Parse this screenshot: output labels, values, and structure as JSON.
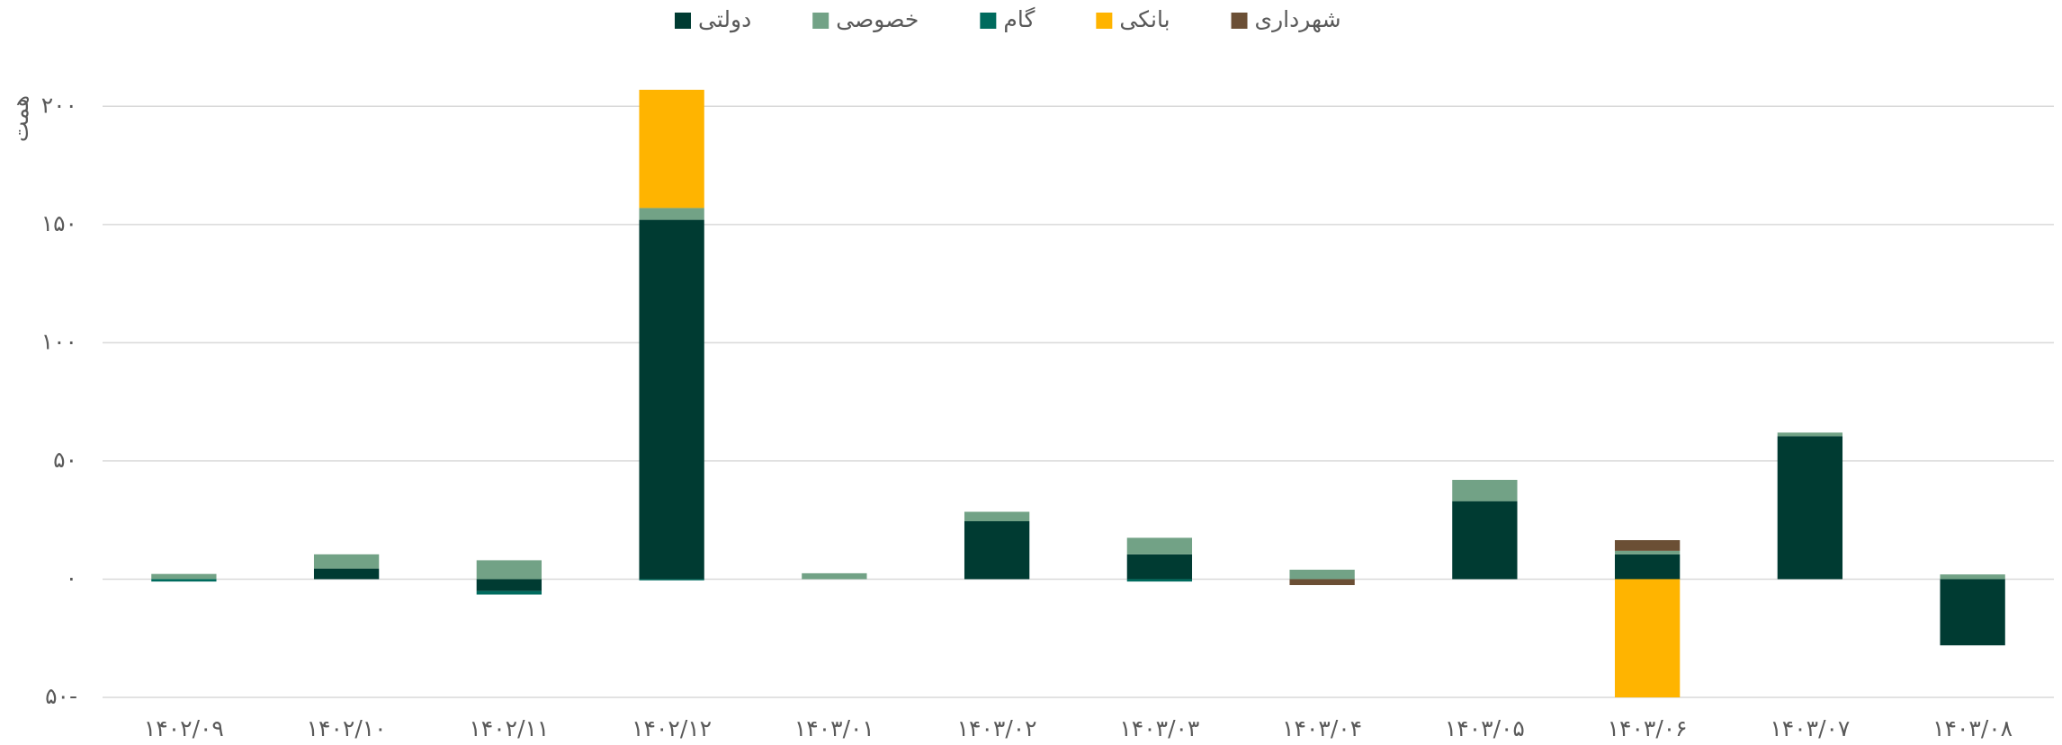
{
  "chart_data": {
    "type": "bar",
    "stacked": true,
    "y_label": "همت",
    "categories": [
      "۱۴۰۲/۰۹",
      "۱۴۰۲/۱۰",
      "۱۴۰۲/۱۱",
      "۱۴۰۲/۱۲",
      "۱۴۰۳/۰۱",
      "۱۴۰۳/۰۲",
      "۱۴۰۳/۰۳",
      "۱۴۰۳/۰۴",
      "۱۴۰۳/۰۵",
      "۱۴۰۳/۰۶",
      "۱۴۰۳/۰۷",
      "۱۴۰۳/۰۸"
    ],
    "series": [
      {
        "name": "دولتی",
        "color": "#003b32",
        "values": [
          0,
          4.5,
          -5,
          152,
          0,
          24.5,
          10.5,
          0,
          33,
          10.5,
          60.5,
          -28
        ]
      },
      {
        "name": "خصوصی",
        "color": "#72a286",
        "values": [
          2.2,
          6,
          8,
          5,
          2.5,
          4,
          7,
          4,
          9,
          1.5,
          1.5,
          2
        ]
      },
      {
        "name": "گام",
        "color": "#006b5e",
        "values": [
          -1,
          0,
          -1.5,
          -0.5,
          0,
          0,
          -1,
          0,
          0,
          0,
          0,
          0
        ]
      },
      {
        "name": "بانکی",
        "color": "#ffb400",
        "values": [
          0,
          0,
          0,
          50,
          0,
          0,
          0,
          0,
          0,
          -50,
          0,
          0
        ]
      },
      {
        "name": "شهرداری",
        "color": "#6b4f35",
        "values": [
          0,
          0,
          0,
          0,
          0,
          0,
          0,
          -2.5,
          0,
          4.5,
          0,
          0
        ]
      }
    ],
    "ylim": [
      -50,
      210
    ],
    "yticks": [
      {
        "value": -50,
        "label": "۵۰-"
      },
      {
        "value": 0,
        "label": "۰"
      },
      {
        "value": 50,
        "label": "۵۰"
      },
      {
        "value": 100,
        "label": "۱۰۰"
      },
      {
        "value": 150,
        "label": "۱۵۰"
      },
      {
        "value": 200,
        "label": "۲۰۰"
      }
    ],
    "grid": true,
    "legend": "top"
  }
}
